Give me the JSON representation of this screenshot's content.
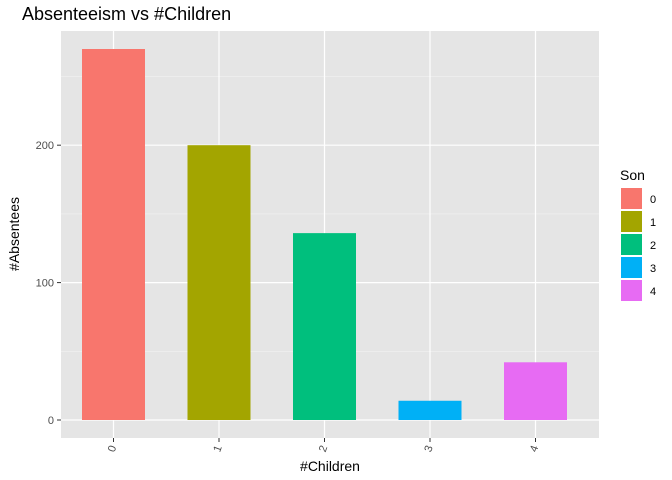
{
  "chart_data": {
    "type": "bar",
    "title": "Absenteeism vs #Children",
    "xlabel": "#Children",
    "ylabel": "#Absentees",
    "categories": [
      "0",
      "1",
      "2",
      "3",
      "4"
    ],
    "values": [
      270,
      200,
      136,
      14,
      42
    ],
    "colors": [
      "#F8766D",
      "#A3A500",
      "#00BF7D",
      "#00B0F6",
      "#E76BF3"
    ],
    "ylim": [
      0,
      285
    ],
    "yticks": [
      0,
      100,
      200
    ],
    "grid": true,
    "background": "#E5E5E5",
    "legend": {
      "title": "Son",
      "position": "right",
      "entries": [
        "0",
        "1",
        "2",
        "3",
        "4"
      ]
    }
  }
}
